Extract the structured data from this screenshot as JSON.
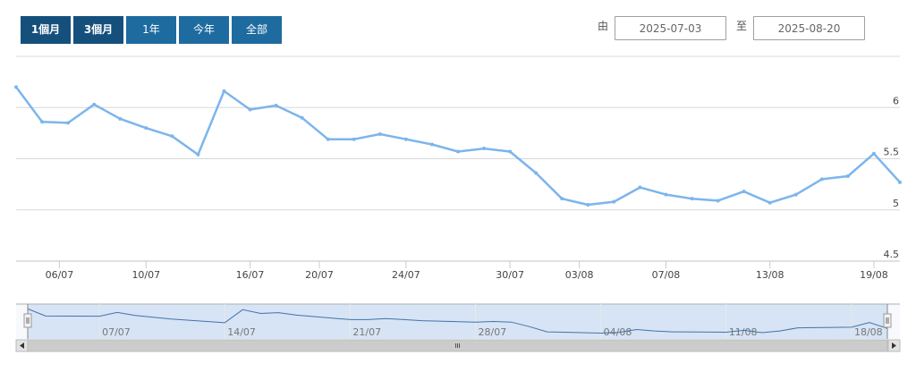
{
  "range_selector": {
    "buttons": [
      {
        "label": "1個月",
        "active": true
      },
      {
        "label": "3個月",
        "active": true
      },
      {
        "label": "1年",
        "active": false
      },
      {
        "label": "今年",
        "active": false
      },
      {
        "label": "全部",
        "active": false
      }
    ],
    "from_label": "由",
    "to_label": "至",
    "from_date": "2025-07-03",
    "to_date": "2025-08-20"
  },
  "colors": {
    "line": "#7cb5ec",
    "button": "#1e6ba0",
    "button_active": "#15507d",
    "navigator_mask": "#d6e4f5",
    "navigator_line": "#4572a7",
    "scrollbar": "#cccccc"
  },
  "chart_data": {
    "type": "line",
    "title": "",
    "xlabel": "",
    "ylabel": "",
    "x_range": [
      "2025-07-03",
      "2025-08-20"
    ],
    "ylim": [
      4.5,
      6.5
    ],
    "grid": true,
    "y_ticks": [
      {
        "value": 4.5,
        "label": "4.5"
      },
      {
        "value": 5,
        "label": "5"
      },
      {
        "value": 5.5,
        "label": "5.5"
      },
      {
        "value": 6,
        "label": "6"
      }
    ],
    "x_ticks": [
      {
        "date": "2025-07-06",
        "label": "06/07"
      },
      {
        "date": "2025-07-10",
        "label": "10/07"
      },
      {
        "date": "2025-07-16",
        "label": "16/07"
      },
      {
        "date": "2025-07-20",
        "label": "20/07"
      },
      {
        "date": "2025-07-24",
        "label": "24/07"
      },
      {
        "date": "2025-07-30",
        "label": "30/07"
      },
      {
        "date": "2025-08-03",
        "label": "03/08"
      },
      {
        "date": "2025-08-07",
        "label": "07/08"
      },
      {
        "date": "2025-08-13",
        "label": "13/08"
      },
      {
        "date": "2025-08-19",
        "label": "19/08"
      }
    ],
    "series": [
      {
        "points": [
          {
            "x": "2025-07-03",
            "y": 6.2
          },
          {
            "x": "2025-07-04",
            "y": 5.86
          },
          {
            "x": "2025-07-07",
            "y": 5.85
          },
          {
            "x": "2025-07-08",
            "y": 6.03
          },
          {
            "x": "2025-07-09",
            "y": 5.89
          },
          {
            "x": "2025-07-10",
            "y": 5.8
          },
          {
            "x": "2025-07-11",
            "y": 5.72
          },
          {
            "x": "2025-07-14",
            "y": 5.54
          },
          {
            "x": "2025-07-15",
            "y": 6.16
          },
          {
            "x": "2025-07-16",
            "y": 5.98
          },
          {
            "x": "2025-07-17",
            "y": 6.02
          },
          {
            "x": "2025-07-18",
            "y": 5.9
          },
          {
            "x": "2025-07-21",
            "y": 5.69
          },
          {
            "x": "2025-07-22",
            "y": 5.69
          },
          {
            "x": "2025-07-23",
            "y": 5.74
          },
          {
            "x": "2025-07-24",
            "y": 5.69
          },
          {
            "x": "2025-07-25",
            "y": 5.64
          },
          {
            "x": "2025-07-28",
            "y": 5.57
          },
          {
            "x": "2025-07-29",
            "y": 5.6
          },
          {
            "x": "2025-07-30",
            "y": 5.57
          },
          {
            "x": "2025-07-31",
            "y": 5.36
          },
          {
            "x": "2025-08-01",
            "y": 5.11
          },
          {
            "x": "2025-08-04",
            "y": 5.05
          },
          {
            "x": "2025-08-05",
            "y": 5.08
          },
          {
            "x": "2025-08-06",
            "y": 5.22
          },
          {
            "x": "2025-08-07",
            "y": 5.15
          },
          {
            "x": "2025-08-08",
            "y": 5.11
          },
          {
            "x": "2025-08-11",
            "y": 5.09
          },
          {
            "x": "2025-08-12",
            "y": 5.18
          },
          {
            "x": "2025-08-13",
            "y": 5.07
          },
          {
            "x": "2025-08-14",
            "y": 5.15
          },
          {
            "x": "2025-08-15",
            "y": 5.3
          },
          {
            "x": "2025-08-18",
            "y": 5.33
          },
          {
            "x": "2025-08-19",
            "y": 5.55
          },
          {
            "x": "2025-08-20",
            "y": 5.27
          }
        ]
      }
    ],
    "navigator": {
      "x_ticks": [
        {
          "date": "2025-07-07",
          "label": "07/07"
        },
        {
          "date": "2025-07-14",
          "label": "14/07"
        },
        {
          "date": "2025-07-21",
          "label": "21/07"
        },
        {
          "date": "2025-07-28",
          "label": "28/07"
        },
        {
          "date": "2025-08-04",
          "label": "04/08"
        },
        {
          "date": "2025-08-11",
          "label": "11/08"
        },
        {
          "date": "2025-08-18",
          "label": "18/08"
        }
      ]
    }
  }
}
